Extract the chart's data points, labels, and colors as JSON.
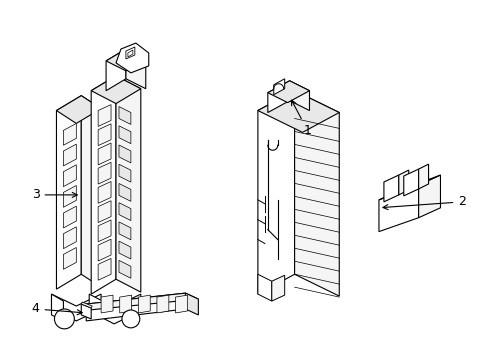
{
  "background_color": "#ffffff",
  "line_color": "#000000",
  "line_width": 0.8,
  "fill_white": "#ffffff",
  "fill_light": "#f5f5f5",
  "fill_mid": "#e8e8e8"
}
